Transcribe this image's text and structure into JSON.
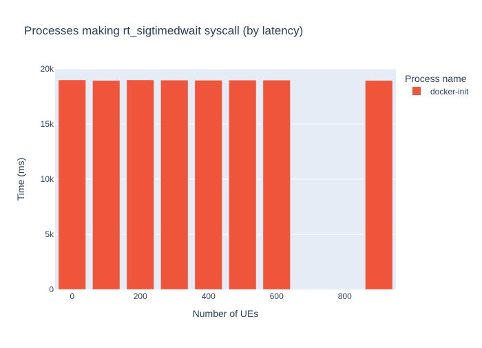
{
  "chart_data": {
    "type": "bar",
    "title": "Processes making rt_sigtimedwait syscall (by latency)",
    "xlabel": "Number of UEs",
    "ylabel": "Time (ms)",
    "x": [
      0,
      100,
      200,
      300,
      400,
      500,
      600,
      900
    ],
    "series": [
      {
        "name": "docker-init",
        "color": "#EF553B",
        "values": [
          19000,
          18950,
          19000,
          18980,
          18970,
          18980,
          18980,
          18950
        ]
      }
    ],
    "xlim": [
      -50,
      950
    ],
    "ylim": [
      0,
      20000
    ],
    "x_ticks": [
      0,
      200,
      400,
      600,
      800
    ],
    "x_tick_labels": [
      "0",
      "200",
      "400",
      "600",
      "800"
    ],
    "y_ticks": [
      0,
      5000,
      10000,
      15000,
      20000
    ],
    "y_tick_labels": [
      "0",
      "5k",
      "10k",
      "15k",
      "20k"
    ],
    "legend_title": "Process name",
    "legend_position": "top-right",
    "grid": true,
    "plot_background": "#E5ECF6",
    "text_color": "#2a3f5f"
  }
}
